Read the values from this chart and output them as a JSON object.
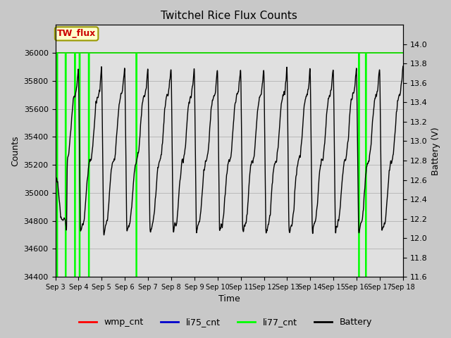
{
  "title": "Twitchel Rice Flux Counts",
  "xlabel": "Time",
  "ylabel_left": "Counts",
  "ylabel_right": "Battery (V)",
  "ylim_left": [
    34400,
    36200
  ],
  "ylim_right": [
    11.6,
    14.2
  ],
  "x_tick_labels": [
    "Sep 3",
    "Sep 4",
    "Sep 5",
    "Sep 6",
    "Sep 7",
    "Sep 8",
    "Sep 9",
    "Sep 10",
    "Sep 11",
    "Sep 12",
    "Sep 13",
    "Sep 14",
    "Sep 15",
    "Sep 16",
    "Sep 17",
    "Sep 18"
  ],
  "annotation_text": "TW_flux",
  "annotation_color": "#cc0000",
  "annotation_bg": "#ffffcc",
  "fig_facecolor": "#c8c8c8",
  "plot_facecolor": "#e0e0e0",
  "li77_color": "#00ff00",
  "wmp_color": "#ff0000",
  "li75_color": "#0000cc",
  "battery_color": "#000000",
  "left_ticks": [
    34400,
    34600,
    34800,
    35000,
    35200,
    35400,
    35600,
    35800,
    36000
  ],
  "right_ticks": [
    11.6,
    11.8,
    12.0,
    12.2,
    12.4,
    12.6,
    12.8,
    13.0,
    13.2,
    13.4,
    13.6,
    13.8,
    14.0
  ]
}
